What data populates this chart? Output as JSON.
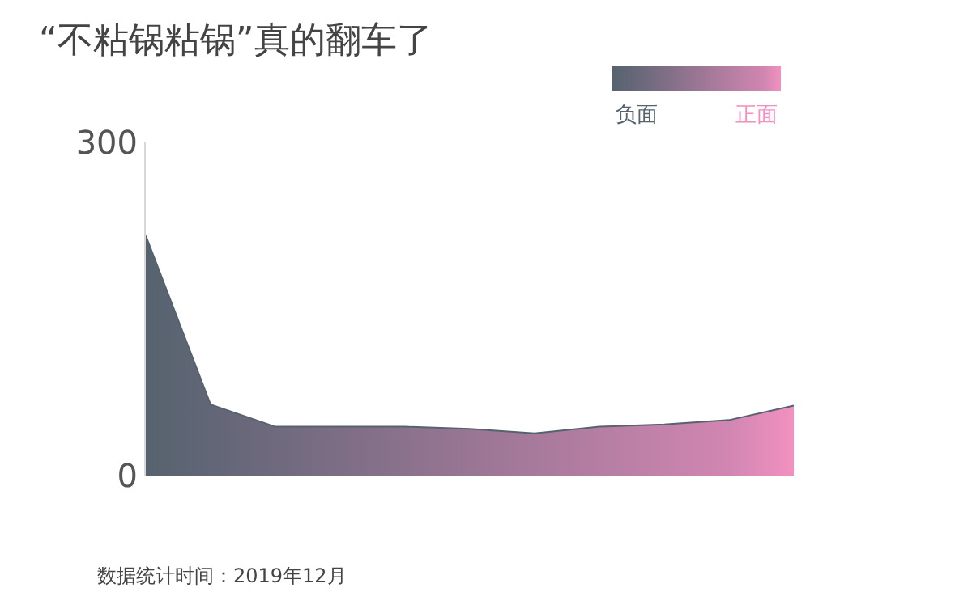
{
  "chart_data": {
    "type": "area",
    "title": "“不粘锅粘锅”真的翻车了",
    "categories": [
      null,
      null,
      null,
      null,
      null,
      null,
      null,
      null,
      null,
      null,
      null
    ],
    "series": [
      {
        "values": [
          216,
          64,
          44,
          44,
          44,
          42,
          38,
          44,
          46,
          50,
          63
        ],
        "colors": [
          "#56636f",
          "#626676",
          "#6f6a7d",
          "#7d6e85",
          "#8b728c",
          "#997693",
          "#a77a9b",
          "#b57ea2",
          "#c382aa",
          "#d186b2",
          "#f291c0"
        ]
      }
    ],
    "ylim": [
      0,
      300
    ],
    "yticks": [
      0,
      300
    ],
    "annotations": [
      "负面",
      "正面",
      "数据统计时间：2019年12月"
    ]
  }
}
